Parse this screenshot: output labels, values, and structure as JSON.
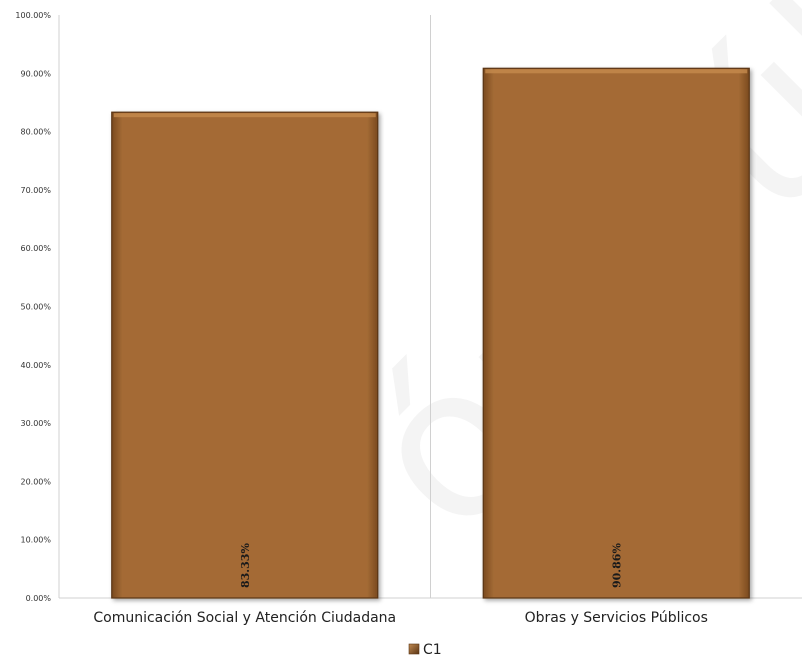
{
  "chart_data": {
    "type": "bar",
    "categories": [
      "Comunicación Social y Atención Ciudadana",
      "Obras y Servicios Públicos"
    ],
    "series": [
      {
        "name": "C1",
        "values": [
          83.33,
          90.86
        ],
        "labels": [
          "83.33%",
          "90.86%"
        ]
      }
    ],
    "ylim": [
      0,
      100
    ],
    "ytick_labels": [
      "0.00%",
      "10.00%",
      "20.00%",
      "30.00%",
      "40.00%",
      "50.00%",
      "60.00%",
      "70.00%",
      "80.00%",
      "90.00%",
      "100.00%"
    ],
    "grid": false,
    "legend_position": "bottom",
    "bar_color": "#a46b35",
    "bar_edge_color": "#5a3413"
  },
  "watermark": {
    "text": "ón Públi",
    "color": "#e0e0e0"
  }
}
